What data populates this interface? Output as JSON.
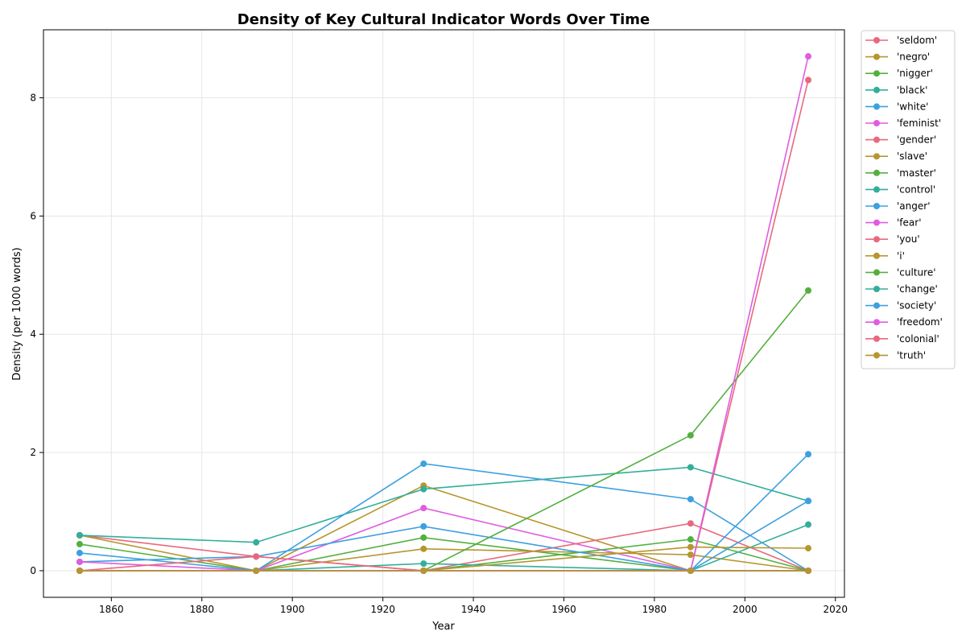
{
  "chart_data": {
    "type": "line",
    "title": "Density of Key Cultural Indicator Words Over Time",
    "xlabel": "Year",
    "ylabel": "Density (per 1000 words)",
    "xlim": [
      1845,
      2022
    ],
    "ylim": [
      -0.45,
      9.15
    ],
    "xticks": [
      1860,
      1880,
      1900,
      1920,
      1940,
      1960,
      1980,
      2000,
      2020
    ],
    "yticks": [
      0,
      2,
      4,
      6,
      8
    ],
    "grid": true,
    "legend_position": "outside-right",
    "x": [
      1853,
      1892,
      1929,
      1988,
      2014
    ],
    "series": [
      {
        "name": "'seldom'",
        "color": "#e8697d",
        "values": [
          0.6,
          0.24,
          0.0,
          0.0,
          0.0
        ]
      },
      {
        "name": "'negro'",
        "color": "#b7962f",
        "values": [
          0.6,
          0.0,
          1.44,
          0.0,
          0.0
        ]
      },
      {
        "name": "'nigger'",
        "color": "#53b03f",
        "values": [
          0.45,
          0.0,
          0.56,
          0.0,
          0.0
        ]
      },
      {
        "name": "'black'",
        "color": "#33ae9a",
        "values": [
          0.6,
          0.48,
          1.38,
          1.75,
          1.18
        ]
      },
      {
        "name": "'white'",
        "color": "#3ca0e0",
        "values": [
          0.3,
          0.0,
          1.81,
          1.21,
          0.0
        ]
      },
      {
        "name": "'feminist'",
        "color": "#e05ce0",
        "values": [
          0.0,
          0.0,
          1.06,
          0.0,
          0.0
        ]
      },
      {
        "name": "'gender'",
        "color": "#e8697d",
        "values": [
          0.0,
          0.0,
          0.0,
          0.8,
          0.0
        ]
      },
      {
        "name": "'slave'",
        "color": "#b7962f",
        "values": [
          0.0,
          0.0,
          0.37,
          0.27,
          0.0
        ]
      },
      {
        "name": "'master'",
        "color": "#53b03f",
        "values": [
          0.0,
          0.0,
          0.0,
          0.53,
          0.0
        ]
      },
      {
        "name": "'control'",
        "color": "#33ae9a",
        "values": [
          0.0,
          0.0,
          0.12,
          0.0,
          0.78
        ]
      },
      {
        "name": "'anger'",
        "color": "#3ca0e0",
        "values": [
          0.15,
          0.24,
          0.75,
          0.0,
          1.97
        ]
      },
      {
        "name": "'fear'",
        "color": "#e05ce0",
        "values": [
          0.15,
          0.0,
          0.0,
          0.0,
          0.0
        ]
      },
      {
        "name": "'you'",
        "color": "#e8697d",
        "values": [
          0.0,
          0.24,
          0.0,
          0.0,
          8.3
        ]
      },
      {
        "name": "'i'",
        "color": "#b7962f",
        "values": [
          0.0,
          0.0,
          0.0,
          0.4,
          0.38
        ]
      },
      {
        "name": "'culture'",
        "color": "#53b03f",
        "values": [
          0.0,
          0.0,
          0.0,
          2.29,
          4.74
        ]
      },
      {
        "name": "'change'",
        "color": "#33ae9a",
        "values": [
          0.0,
          0.0,
          0.0,
          0.0,
          0.0
        ]
      },
      {
        "name": "'society'",
        "color": "#3ca0e0",
        "values": [
          0.0,
          0.0,
          0.0,
          0.0,
          1.18
        ]
      },
      {
        "name": "'freedom'",
        "color": "#e05ce0",
        "values": [
          0.0,
          0.0,
          0.0,
          0.0,
          8.7
        ]
      },
      {
        "name": "'colonial'",
        "color": "#e8697d",
        "values": [
          0.0,
          0.0,
          0.0,
          0.0,
          0.0
        ]
      },
      {
        "name": "'truth'",
        "color": "#b7962f",
        "values": [
          0.0,
          0.0,
          0.0,
          0.0,
          0.0
        ]
      }
    ]
  }
}
